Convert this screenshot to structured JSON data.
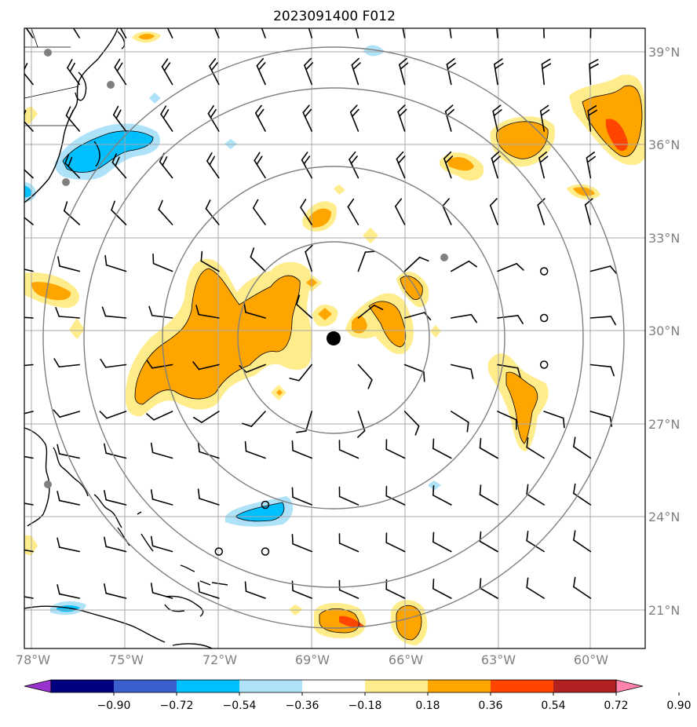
{
  "title": "2023091400 F012",
  "lat_labels": [
    "39°N",
    "36°N",
    "33°N",
    "30°N",
    "27°N",
    "24°N",
    "21°N"
  ],
  "lon_labels": [
    "78°W",
    "75°W",
    "72°W",
    "69°W",
    "66°W",
    "63°W",
    "60°W"
  ],
  "colorbar": {
    "tick_labels": [
      "−0.90",
      "−0.72",
      "−0.54",
      "−0.36",
      "−0.18",
      "0.18",
      "0.36",
      "0.54",
      "0.72",
      "0.90"
    ],
    "colors": [
      "#9a32cd",
      "#000080",
      "#3a5fcd",
      "#00bfff",
      "#aee2f8",
      "#ffffff",
      "#ffec8b",
      "#ffa500",
      "#ff4500",
      "#b22222",
      "#ff82ab"
    ]
  },
  "map": {
    "fill_colors": {
      "neg_light": "#aee2f8",
      "neg_mid": "#00bfff",
      "pos_light": "#ffec8b",
      "pos_mid": "#ffa500",
      "pos_dark": "#ff4500"
    },
    "grid_color": "#aaaaaa",
    "ring_color": "#808080",
    "storm_center": {
      "lon": -68.2,
      "lat": 29.8
    },
    "range_rings_deg": [
      3,
      6,
      9
    ]
  }
}
